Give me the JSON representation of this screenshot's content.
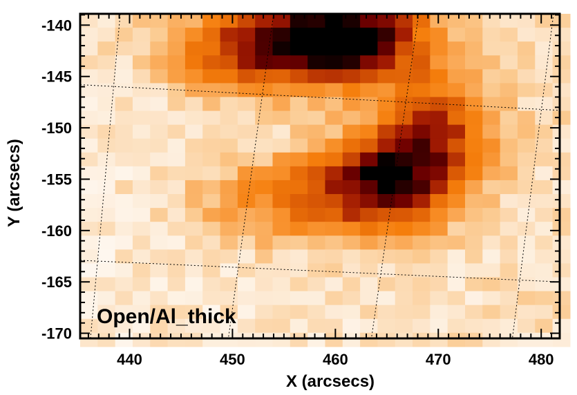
{
  "chart_data": {
    "type": "heatmap",
    "title": "",
    "xlabel": "X (arcsecs)",
    "ylabel": "Y (arcsecs)",
    "xlim": [
      435.2,
      481.8
    ],
    "ylim": [
      -170.5,
      -138.9
    ],
    "x_ticks": [
      440,
      450,
      460,
      470,
      480
    ],
    "y_ticks": [
      -140,
      -145,
      -150,
      -155,
      -160,
      -165,
      -170
    ],
    "annotation": "Open/Al_thick",
    "colormap": [
      "#ffffff",
      "#fdebd6",
      "#fbc98e",
      "#f99a3c",
      "#f57e0c",
      "#d45204",
      "#a31c02",
      "#6e0000",
      "#000000"
    ],
    "grid": "dotted",
    "pixel_size": [
      1.7,
      1.35
    ],
    "intensity_peaks": [
      {
        "label": "upper dark core",
        "x": 461,
        "y": -141,
        "sigma_x": 5.5,
        "sigma_y": 3.0,
        "amp": 0.9
      },
      {
        "label": "upper-left arc",
        "x": 452,
        "y": -142.5,
        "sigma_x": 6.5,
        "sigma_y": 2.8,
        "amp": 0.55
      },
      {
        "label": "central knot",
        "x": 465,
        "y": -155,
        "sigma_x": 4.5,
        "sigma_y": 3.2,
        "amp": 0.7
      },
      {
        "label": "right arm",
        "x": 470,
        "y": -150,
        "sigma_x": 4.0,
        "sigma_y": 4.0,
        "amp": 0.5
      },
      {
        "label": "mid plateau",
        "x": 456,
        "y": -157,
        "sigma_x": 7.0,
        "sigma_y": 3.0,
        "amp": 0.35
      }
    ],
    "background_level": 0.12
  }
}
